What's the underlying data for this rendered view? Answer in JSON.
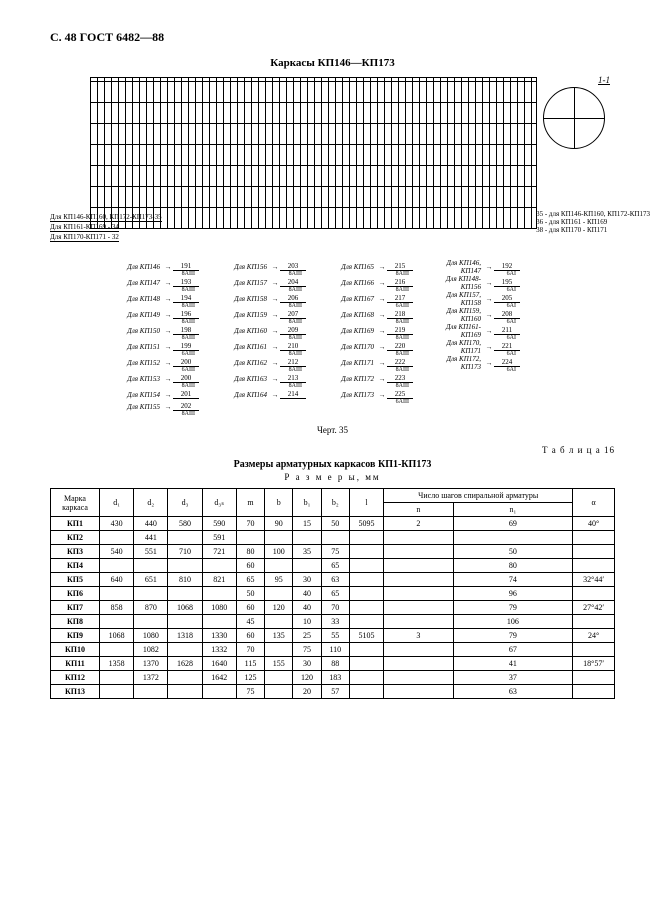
{
  "header": "С. 48 ГОСТ 6482—88",
  "diagram_title": "Каркасы КП146—КП173",
  "detail_label": "1-1",
  "side_labels": [
    "Для КП146-КП160, КП172-КП173-35",
    "Для КП161-КП169 - 34",
    "Для КП170-КП171 - 32"
  ],
  "right_side_labels": [
    "35 - для КП146-КП160, КП172-КП173",
    "36 - для КП161 - КП169",
    "38 - для КП170 - КП171"
  ],
  "ref_cols": [
    {
      "rows": [
        {
          "l": "Для КП146",
          "v": "191",
          "n": "8АIII"
        },
        {
          "l": "Для КП147",
          "v": "193",
          "n": "8АIII"
        },
        {
          "l": "Для КП148",
          "v": "194",
          "n": "8АIII"
        },
        {
          "l": "Для КП149",
          "v": "196",
          "n": "8АIII"
        },
        {
          "l": "Для КП150",
          "v": "198",
          "n": "8АIII"
        },
        {
          "l": "Для КП151",
          "v": "199",
          "n": "6АIII"
        },
        {
          "l": "Для КП152",
          "v": "200",
          "n": "6АIII"
        },
        {
          "l": "Для КП153",
          "v": "200",
          "n": "8АIII"
        },
        {
          "l": "Для КП154",
          "v": "201",
          "n": ""
        },
        {
          "l": "Для КП155",
          "v": "202",
          "n": "8АIII"
        }
      ]
    },
    {
      "rows": [
        {
          "l": "Для КП156",
          "v": "203",
          "n": "8АIII"
        },
        {
          "l": "Для КП157",
          "v": "204",
          "n": "8АIII"
        },
        {
          "l": "Для КП158",
          "v": "206",
          "n": "8АIII"
        },
        {
          "l": "Для КП159",
          "v": "207",
          "n": "8АIII"
        },
        {
          "l": "Для КП160",
          "v": "209",
          "n": "8АIII"
        },
        {
          "l": "Для КП161",
          "v": "210",
          "n": "8АIII"
        },
        {
          "l": "Для КП162",
          "v": "212",
          "n": "8АIII"
        },
        {
          "l": "Для КП163",
          "v": "213",
          "n": "8АIII"
        },
        {
          "l": "Для КП164",
          "v": "214",
          "n": ""
        }
      ]
    },
    {
      "rows": [
        {
          "l": "Для КП165",
          "v": "215",
          "n": "8АIII"
        },
        {
          "l": "Для КП166",
          "v": "216",
          "n": "8АIII"
        },
        {
          "l": "Для КП167",
          "v": "217",
          "n": "6АIII"
        },
        {
          "l": "Для КП168",
          "v": "218",
          "n": "8АIII"
        },
        {
          "l": "Для КП169",
          "v": "219",
          "n": "8АIII"
        },
        {
          "l": "Для КП170",
          "v": "220",
          "n": "8АIII"
        },
        {
          "l": "Для КП171",
          "v": "222",
          "n": "8АIII"
        },
        {
          "l": "Для КП172",
          "v": "223",
          "n": "8АIII"
        },
        {
          "l": "Для КП173",
          "v": "225",
          "n": "6АIII"
        }
      ]
    },
    {
      "rows": [
        {
          "l": "Для КП146, КП147",
          "v": "192",
          "n": "6АI"
        },
        {
          "l": "Для КП148-КП156",
          "v": "195",
          "n": "6АI"
        },
        {
          "l": "Для КП157, КП158",
          "v": "205",
          "n": "6АI"
        },
        {
          "l": "Для КП159, КП160",
          "v": "208",
          "n": "6АI"
        },
        {
          "l": "Для КП161-КП169",
          "v": "211",
          "n": "6АI"
        },
        {
          "l": "Для КП170, КП171",
          "v": "221",
          "n": "6АI"
        },
        {
          "l": "Для КП172, КП173",
          "v": "224",
          "n": "6АI"
        }
      ]
    }
  ],
  "chert": "Черт. 35",
  "table_label": "Т а б л и ц а  16",
  "table_title": "Размеры арматурных каркасов КП1-КП173",
  "table_subtitle": "Р а з м е р ы,  мм",
  "headers": {
    "mark": "Марка каркаса",
    "d1": "d₁",
    "d2": "d₂",
    "d3": "d₃",
    "d3s": "d₃ₛ",
    "m": "m",
    "b": "b",
    "b1": "b₁",
    "b2": "b₂",
    "l": "l",
    "spiral": "Число шагов спиральной арматуры",
    "n": "n",
    "n1": "n₁",
    "alpha": "α"
  },
  "rows": [
    {
      "mark": "КП1",
      "d1": "430",
      "d2": "440",
      "d3": "580",
      "d3s": "590",
      "m": "70",
      "b": "90",
      "b1": "15",
      "b2": "50",
      "l": "5095",
      "n": "2",
      "n1": "69",
      "a": "40°"
    },
    {
      "mark": "КП2",
      "d1": "",
      "d2": "441",
      "d3": "",
      "d3s": "591",
      "m": "",
      "b": "",
      "b1": "",
      "b2": "",
      "l": "",
      "n": "",
      "n1": "",
      "a": ""
    },
    {
      "mark": "КП3",
      "d1": "540",
      "d2": "551",
      "d3": "710",
      "d3s": "721",
      "m": "80",
      "b": "100",
      "b1": "35",
      "b2": "75",
      "l": "",
      "n": "",
      "n1": "50",
      "a": ""
    },
    {
      "mark": "КП4",
      "d1": "",
      "d2": "",
      "d3": "",
      "d3s": "",
      "m": "60",
      "b": "",
      "b1": "",
      "b2": "65",
      "l": "",
      "n": "",
      "n1": "80",
      "a": ""
    },
    {
      "mark": "КП5",
      "d1": "640",
      "d2": "651",
      "d3": "810",
      "d3s": "821",
      "m": "65",
      "b": "95",
      "b1": "30",
      "b2": "63",
      "l": "",
      "n": "",
      "n1": "74",
      "a": "32°44′"
    },
    {
      "mark": "КП6",
      "d1": "",
      "d2": "",
      "d3": "",
      "d3s": "",
      "m": "50",
      "b": "",
      "b1": "40",
      "b2": "65",
      "l": "",
      "n": "",
      "n1": "96",
      "a": ""
    },
    {
      "mark": "КП7",
      "d1": "858",
      "d2": "870",
      "d3": "1068",
      "d3s": "1080",
      "m": "60",
      "b": "120",
      "b1": "40",
      "b2": "70",
      "l": "",
      "n": "",
      "n1": "79",
      "a": "27°42′"
    },
    {
      "mark": "КП8",
      "d1": "",
      "d2": "",
      "d3": "",
      "d3s": "",
      "m": "45",
      "b": "",
      "b1": "10",
      "b2": "33",
      "l": "",
      "n": "",
      "n1": "106",
      "a": ""
    },
    {
      "mark": "КП9",
      "d1": "1068",
      "d2": "1080",
      "d3": "1318",
      "d3s": "1330",
      "m": "60",
      "b": "135",
      "b1": "25",
      "b2": "55",
      "l": "5105",
      "n": "3",
      "n1": "79",
      "a": "24°"
    },
    {
      "mark": "КП10",
      "d1": "",
      "d2": "1082",
      "d3": "",
      "d3s": "1332",
      "m": "70",
      "b": "",
      "b1": "75",
      "b2": "110",
      "l": "",
      "n": "",
      "n1": "67",
      "a": ""
    },
    {
      "mark": "КП11",
      "d1": "1358",
      "d2": "1370",
      "d3": "1628",
      "d3s": "1640",
      "m": "115",
      "b": "155",
      "b1": "30",
      "b2": "88",
      "l": "",
      "n": "",
      "n1": "41",
      "a": "18°57′"
    },
    {
      "mark": "КП12",
      "d1": "",
      "d2": "1372",
      "d3": "",
      "d3s": "1642",
      "m": "125",
      "b": "",
      "b1": "120",
      "b2": "183",
      "l": "",
      "n": "",
      "n1": "37",
      "a": ""
    },
    {
      "mark": "КП13",
      "d1": "",
      "d2": "",
      "d3": "",
      "d3s": "",
      "m": "75",
      "b": "",
      "b1": "20",
      "b2": "57",
      "l": "",
      "n": "",
      "n1": "63",
      "a": ""
    }
  ]
}
